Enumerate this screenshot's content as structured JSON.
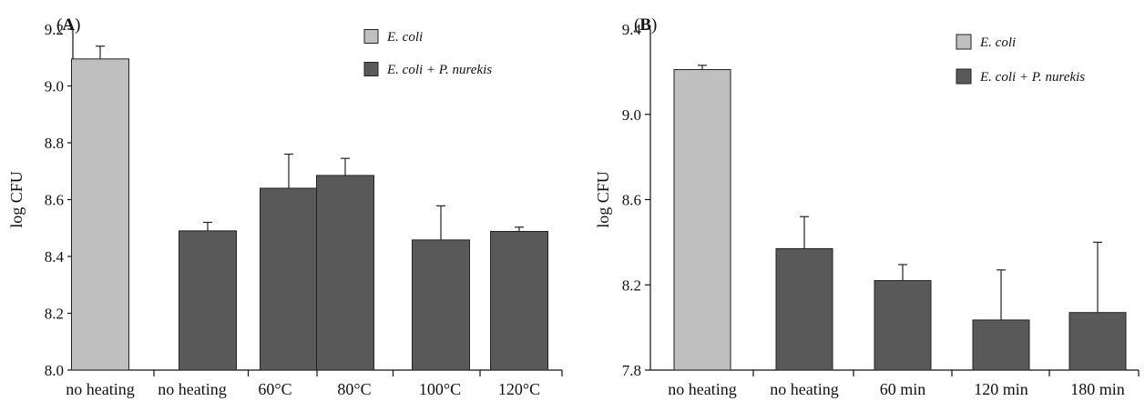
{
  "chart_data": [
    {
      "type": "bar",
      "panel_label": "A",
      "ylabel": "log CFU",
      "ylim": [
        8.0,
        9.2
      ],
      "yticks": [
        "8.0",
        "8.2",
        "8.4",
        "8.6",
        "8.8",
        "9.0",
        "9.2"
      ],
      "categories": [
        "no heating",
        "no heating",
        "60°C",
        "80°C",
        "100°C",
        "120°C"
      ],
      "legend": {
        "placement": "top-right",
        "entries": [
          {
            "label": "E. coli",
            "color": "#c0c0c0"
          },
          {
            "label": "E. coli + P. nurekis",
            "color": "#595959"
          }
        ]
      },
      "bars": [
        {
          "series": 0,
          "value": 9.095,
          "error": 0.045
        },
        {
          "series": 1,
          "value": 8.49,
          "error": 0.03
        },
        {
          "series": 1,
          "value": 8.64,
          "error": 0.12
        },
        {
          "series": 1,
          "value": 8.685,
          "error": 0.06
        },
        {
          "series": 1,
          "value": 8.458,
          "error": 0.12
        },
        {
          "series": 1,
          "value": 8.488,
          "error": 0.015
        }
      ]
    },
    {
      "type": "bar",
      "panel_label": "B",
      "ylabel": "log CFU",
      "ylim": [
        7.8,
        9.4
      ],
      "yticks": [
        "7.8",
        "8.2",
        "8.6",
        "9.0",
        "9.4"
      ],
      "categories": [
        "no heating",
        "no heating",
        "60 min",
        "120 min",
        "180 min"
      ],
      "legend": {
        "placement": "top-right",
        "entries": [
          {
            "label": "E. coli",
            "color": "#c0c0c0"
          },
          {
            "label": "E. coli + P. nurekis",
            "color": "#595959"
          }
        ]
      },
      "bars": [
        {
          "series": 0,
          "value": 9.21,
          "error": 0.02
        },
        {
          "series": 1,
          "value": 8.37,
          "error": 0.15
        },
        {
          "series": 1,
          "value": 8.22,
          "error": 0.075
        },
        {
          "series": 1,
          "value": 8.035,
          "error": 0.235
        },
        {
          "series": 1,
          "value": 8.07,
          "error": 0.33
        }
      ]
    }
  ]
}
